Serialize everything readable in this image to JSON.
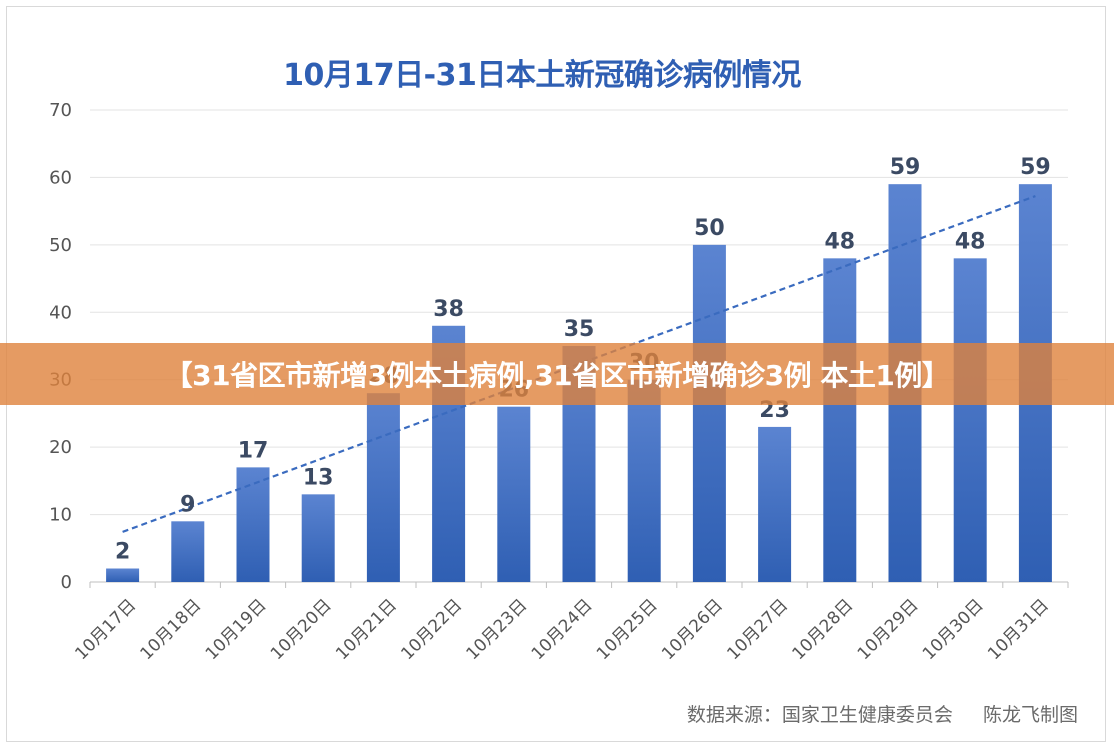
{
  "chart_data": {
    "type": "bar",
    "title": "10月17日-31日本土新冠确诊病例情况",
    "categories": [
      "10月17日",
      "10月18日",
      "10月19日",
      "10月20日",
      "10月21日",
      "10月22日",
      "10月23日",
      "10月24日",
      "10月25日",
      "10月26日",
      "10月27日",
      "10月28日",
      "10月29日",
      "10月30日",
      "10月31日"
    ],
    "values": [
      2,
      9,
      17,
      13,
      28,
      38,
      26,
      35,
      30,
      50,
      23,
      48,
      59,
      48,
      59
    ],
    "data_labels": [
      "2",
      "9",
      "17",
      "13",
      "28",
      "38",
      "26",
      "35",
      "30",
      "50",
      "23",
      "48",
      "59",
      "48",
      "59"
    ],
    "ylim": [
      0,
      70
    ],
    "yticks": [
      0,
      10,
      20,
      30,
      40,
      50,
      60,
      70
    ],
    "grid": true,
    "trendline": {
      "type": "linear",
      "style": "dashed"
    },
    "colors": {
      "bar_top": "#5b84d1",
      "bar_bottom": "#2f5fb3",
      "trend": "#3a6bbf",
      "title": "#2f5fb3"
    }
  },
  "source": {
    "label": "数据来源：国家卫生健康委员会",
    "credit": "陈龙飞制图"
  },
  "banner": {
    "text": "【31省区市新增3例本土病例,31省区市新增确诊3例 本土1例】",
    "color": "#de823c"
  }
}
